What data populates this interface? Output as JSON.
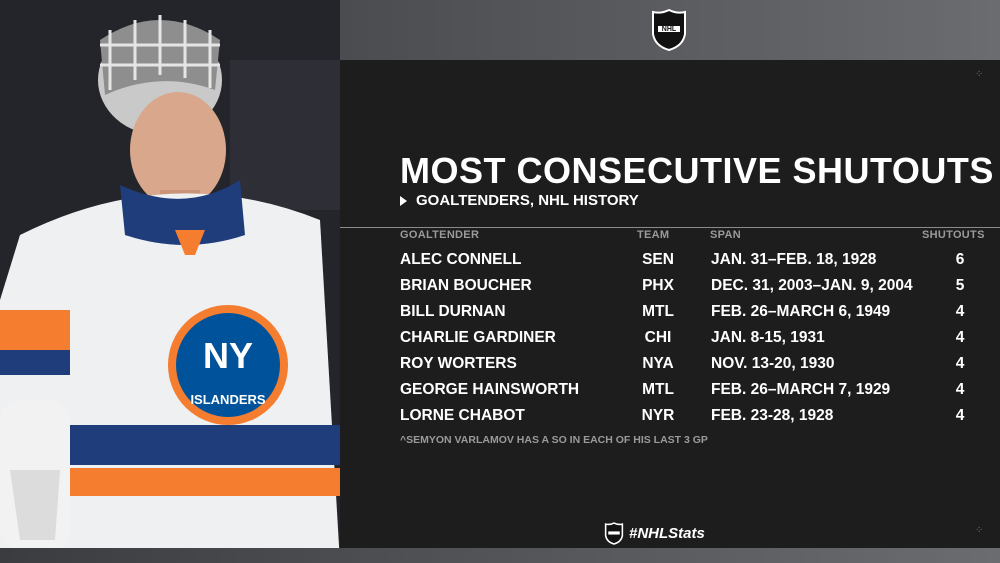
{
  "header": {
    "logo": "nhl-shield-logo",
    "title": "MOST CONSECUTIVE SHUTOUTS",
    "subtitle": "GOALTENDERS, NHL HISTORY"
  },
  "table": {
    "columns": [
      "GOALTENDER",
      "TEAM",
      "SPAN",
      "SHUTOUTS"
    ],
    "rows": [
      {
        "goaltender": "ALEC CONNELL",
        "team": "SEN",
        "span": "JAN. 31–FEB. 18, 1928",
        "shutouts": "6"
      },
      {
        "goaltender": "BRIAN BOUCHER",
        "team": "PHX",
        "span": "DEC. 31, 2003–JAN. 9, 2004",
        "shutouts": "5"
      },
      {
        "goaltender": "BILL DURNAN",
        "team": "MTL",
        "span": "FEB. 26–MARCH 6, 1949",
        "shutouts": "4"
      },
      {
        "goaltender": "CHARLIE GARDINER",
        "team": "CHI",
        "span": "JAN. 8-15, 1931",
        "shutouts": "4"
      },
      {
        "goaltender": "ROY WORTERS",
        "team": "NYA",
        "span": "NOV. 13-20, 1930",
        "shutouts": "4"
      },
      {
        "goaltender": "GEORGE HAINSWORTH",
        "team": "MTL",
        "span": "FEB. 26–MARCH 7, 1929",
        "shutouts": "4"
      },
      {
        "goaltender": "LORNE CHABOT",
        "team": "NYR",
        "span": "FEB. 23-28, 1928",
        "shutouts": "4"
      }
    ]
  },
  "footnote": "^SEMYON VARLAMOV HAS A SO IN EACH OF HIS LAST 3 GP",
  "hashtag": "#NHLStats",
  "photo": {
    "subject": "goaltender-photo",
    "jersey_logo_text": "ISLANDERS",
    "jersey_logo_letters": "NY"
  },
  "colors": {
    "panel": "#1d1d1e",
    "islanders_orange": "#f47d30",
    "islanders_blue": "#00539b"
  }
}
